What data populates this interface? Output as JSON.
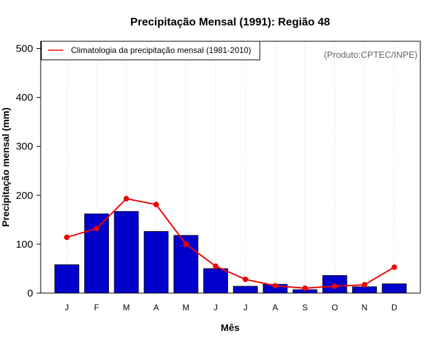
{
  "chart_data": {
    "type": "bar",
    "title": "Precipitação Mensal (1991): Região 48",
    "xlabel": "Mês",
    "ylabel": "Precipitação mensal (mm)",
    "categories": [
      "J",
      "F",
      "M",
      "A",
      "M",
      "J",
      "J",
      "A",
      "S",
      "O",
      "N",
      "D"
    ],
    "ylim": [
      0,
      500
    ],
    "yticks": [
      0,
      100,
      200,
      300,
      400,
      500
    ],
    "grid": "vertical-dotted",
    "series": [
      {
        "name": "Precipitação mensal (1991)",
        "type": "bar",
        "color": "#0000cc",
        "values": [
          58,
          162,
          167,
          126,
          118,
          50,
          14,
          18,
          7,
          36,
          13,
          19
        ]
      },
      {
        "name": "Climatologia da precipitação mensal (1981-2010)",
        "type": "line",
        "color": "#ee0000",
        "values": [
          114,
          132,
          193,
          181,
          100,
          55,
          28,
          15,
          10,
          14,
          17,
          53
        ]
      }
    ],
    "legend": {
      "position": "top-left",
      "label": "Climatologia da precipitação mensal (1981-2010)"
    },
    "credit": "(Produto:CPTEC/INPE)"
  }
}
